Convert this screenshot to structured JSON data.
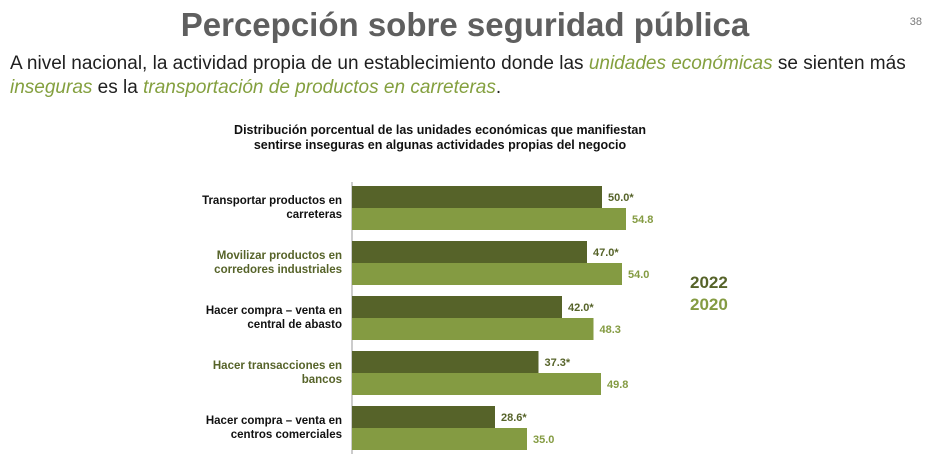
{
  "page": {
    "title": "Percepción sobre seguridad pública",
    "page_number": "38"
  },
  "subtitle": {
    "p1": "A nivel nacional, la actividad propia de un establecimiento donde las ",
    "accent1": "unidades económicas",
    "p2": " se sienten más ",
    "accent2": "inseguras",
    "p3": " es la ",
    "accent3": "transportación de productos en carreteras",
    "p4": "."
  },
  "colors": {
    "series_2022": "#566329",
    "series_2020": "#849b42",
    "label_accent": "#566329",
    "label_normal": "#111111"
  },
  "chart_data": {
    "type": "bar",
    "orientation": "horizontal",
    "title": "Distribución porcentual de las unidades económicas que manifiestan sentirse inseguras en algunas actividades propias del negocio",
    "categories": [
      "Transportar productos en carreteras",
      "Movilizar productos en corredores industriales",
      "Hacer compra – venta en central de abasto",
      "Hacer transacciones en bancos",
      "Hacer compra – venta en centros comerciales"
    ],
    "category_lines": [
      [
        "Transportar productos en",
        "carreteras"
      ],
      [
        "Movilizar productos en",
        "corredores industriales"
      ],
      [
        "Hacer compra – venta en",
        "central de abasto"
      ],
      [
        "Hacer transacciones en",
        "bancos"
      ],
      [
        "Hacer compra – venta en",
        "centros comerciales"
      ]
    ],
    "category_accent": [
      false,
      true,
      false,
      true,
      false
    ],
    "series": [
      {
        "name": "2022",
        "values": [
          50.0,
          47.0,
          42.0,
          37.3,
          28.6
        ],
        "labels": [
          "50.0*",
          "47.0*",
          "42.0*",
          "37.3*",
          "28.6*"
        ]
      },
      {
        "name": "2020",
        "values": [
          54.8,
          54.0,
          48.3,
          49.8,
          35.0
        ],
        "labels": [
          "54.8",
          "54.0",
          "48.3",
          "49.8",
          "35.0"
        ]
      }
    ],
    "xlim": [
      0,
      100
    ],
    "grid": false,
    "legend_position": "right"
  }
}
